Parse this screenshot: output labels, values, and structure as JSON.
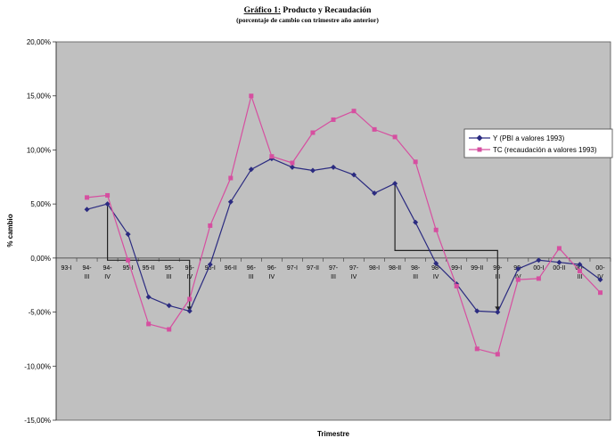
{
  "chart_data": {
    "type": "line",
    "title_prefix": "Gráfico 1:",
    "title_main": " Producto y Recaudación",
    "subtitle": "(porcentaje de cambio con trimestre año anterior)",
    "xlabel": "Trimestre",
    "ylabel": "% cambio",
    "ylim": [
      -15,
      20
    ],
    "yticks": [
      -15,
      -10,
      -5,
      0,
      5,
      10,
      15,
      20
    ],
    "ytick_labels": [
      "-15,00%",
      "-10,00%",
      "-5,00%",
      "0,00%",
      "5,00%",
      "10,00%",
      "15,00%",
      "20,00%"
    ],
    "categories": [
      [
        "93-I"
      ],
      [
        "94-",
        "III"
      ],
      [
        "94-",
        "IV"
      ],
      [
        "95-I"
      ],
      [
        "95-II"
      ],
      [
        "95-",
        "III"
      ],
      [
        "95-",
        "IV"
      ],
      [
        "96-I"
      ],
      [
        "96-II"
      ],
      [
        "96-",
        "III"
      ],
      [
        "96-",
        "IV"
      ],
      [
        "97-I"
      ],
      [
        "97-II"
      ],
      [
        "97-",
        "III"
      ],
      [
        "97-",
        "IV"
      ],
      [
        "98-I"
      ],
      [
        "98-II"
      ],
      [
        "98-",
        "III"
      ],
      [
        "98-",
        "IV"
      ],
      [
        "99-I"
      ],
      [
        "99-II"
      ],
      [
        "99-",
        "III"
      ],
      [
        "99-",
        "IV"
      ],
      [
        "00-I"
      ],
      [
        "00-II"
      ],
      [
        "00-",
        "III"
      ],
      [
        "00-",
        "IV"
      ]
    ],
    "grid": false,
    "background": "#c0c0c0",
    "legend_position": "right",
    "series": [
      {
        "name": "Y (PBI a valores 1993)",
        "color": "#2b2b80",
        "marker": "diamond",
        "values": [
          null,
          4.5,
          5.0,
          2.2,
          -3.6,
          -4.4,
          -4.9,
          -0.6,
          5.2,
          8.2,
          9.2,
          8.4,
          8.1,
          8.4,
          7.7,
          6.0,
          6.9,
          3.3,
          -0.5,
          -2.4,
          -4.9,
          -5.0,
          -1.0,
          -0.2,
          -0.4,
          -0.6,
          -2.0
        ]
      },
      {
        "name": "TC (recaudación a valores 1993)",
        "color": "#d64fa0",
        "marker": "square",
        "values": [
          null,
          5.6,
          5.8,
          -0.2,
          -6.1,
          -6.6,
          -3.8,
          3.0,
          7.4,
          15.0,
          9.4,
          8.8,
          11.6,
          12.8,
          13.6,
          11.9,
          11.2,
          8.9,
          2.6,
          -2.6,
          -8.4,
          -8.9,
          -2.0,
          -1.9,
          0.9,
          -1.2,
          -3.2
        ]
      }
    ],
    "annotations": {
      "color": "#222222",
      "lines": [
        [
          [
            2,
            5.0
          ],
          [
            2,
            -0.2
          ],
          [
            6,
            -0.2
          ],
          [
            6,
            -4.9
          ]
        ],
        [
          [
            16,
            6.9
          ],
          [
            16,
            0.7
          ],
          [
            21,
            0.7
          ],
          [
            21,
            -4.9
          ]
        ]
      ]
    }
  }
}
